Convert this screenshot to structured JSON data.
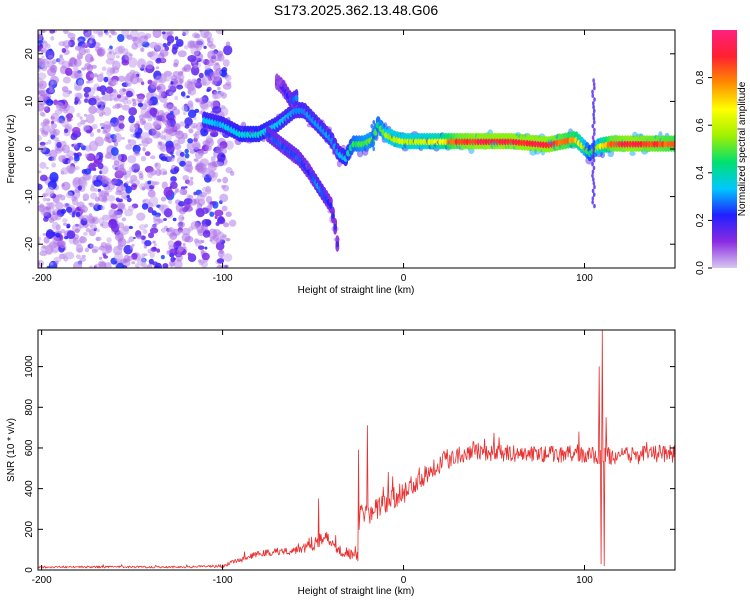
{
  "title": "S173.2025.362.13.48.G06",
  "chart_data": [
    {
      "type": "heatmap",
      "name": "spectrogram",
      "xlabel": "Height of straight line (km)",
      "ylabel": "Frequency (Hz)",
      "xlim": [
        -202,
        150
      ],
      "ylim": [
        -25,
        25
      ],
      "xticks": [
        -200,
        -100,
        0,
        100
      ],
      "xtick_labels": [
        "-200",
        "-100",
        "0",
        "100"
      ],
      "yticks": [
        -20,
        -10,
        0,
        10,
        20
      ],
      "ytick_labels": [
        "-20",
        "-10",
        "0",
        "10",
        "20"
      ],
      "colorbar": {
        "label": "Normalized spectral amplitude",
        "range": [
          0,
          1
        ],
        "ticks": [
          0.0,
          0.2,
          0.4,
          0.6,
          0.8
        ],
        "tick_labels": [
          "0.0",
          "0.2",
          "0.4",
          "0.6",
          "0.8"
        ],
        "stops": [
          "#d8c8f0",
          "#8a2be2",
          "#2020ff",
          "#00c8ff",
          "#00e070",
          "#a0f000",
          "#ffff00",
          "#ff8c00",
          "#ff2030",
          "#ff2080"
        ]
      },
      "features": {
        "noise_region_x": [
          -202,
          -93
        ],
        "noise_amplitude": 0.15,
        "main_trace": [
          {
            "x": -110,
            "f": 6,
            "a": 0.32
          },
          {
            "x": -100,
            "f": 5,
            "a": 0.32
          },
          {
            "x": -90,
            "f": 3,
            "a": 0.36
          },
          {
            "x": -80,
            "f": 3,
            "a": 0.36
          },
          {
            "x": -70,
            "f": 5,
            "a": 0.33
          },
          {
            "x": -60,
            "f": 8,
            "a": 0.3
          },
          {
            "x": -55,
            "f": 8,
            "a": 0.3
          },
          {
            "x": -50,
            "f": 6,
            "a": 0.3
          },
          {
            "x": -45,
            "f": 4,
            "a": 0.3
          },
          {
            "x": -40,
            "f": 2,
            "a": 0.3
          },
          {
            "x": -36,
            "f": -1,
            "a": 0.3
          },
          {
            "x": -32,
            "f": -2,
            "a": 0.35
          },
          {
            "x": -28,
            "f": 1,
            "a": 0.45
          },
          {
            "x": -22,
            "f": 1,
            "a": 0.5
          },
          {
            "x": -17,
            "f": 2,
            "a": 0.5
          },
          {
            "x": -14,
            "f": 5,
            "a": 0.45
          },
          {
            "x": -10,
            "f": 3,
            "a": 0.55
          },
          {
            "x": -5,
            "f": 2,
            "a": 0.6
          },
          {
            "x": 0,
            "f": 1.5,
            "a": 0.6
          },
          {
            "x": 10,
            "f": 1.5,
            "a": 0.6
          },
          {
            "x": 20,
            "f": 1.5,
            "a": 0.65
          },
          {
            "x": 30,
            "f": 1.5,
            "a": 0.85
          },
          {
            "x": 40,
            "f": 1.5,
            "a": 0.9
          },
          {
            "x": 60,
            "f": 1.5,
            "a": 0.9
          },
          {
            "x": 80,
            "f": 0.8,
            "a": 0.9
          },
          {
            "x": 95,
            "f": 2,
            "a": 0.75
          },
          {
            "x": 103,
            "f": -1,
            "a": 0.4
          },
          {
            "x": 108,
            "f": 0.5,
            "a": 0.6
          },
          {
            "x": 115,
            "f": 1,
            "a": 0.85
          },
          {
            "x": 125,
            "f": 1,
            "a": 0.9
          },
          {
            "x": 140,
            "f": 1,
            "a": 0.85
          },
          {
            "x": 150,
            "f": 1,
            "a": 0.8
          }
        ],
        "secondary_trace": [
          {
            "x": -75,
            "f": 3,
            "a": 0.25
          },
          {
            "x": -65,
            "f": 0,
            "a": 0.25
          },
          {
            "x": -58,
            "f": -2,
            "a": 0.25
          },
          {
            "x": -52,
            "f": -5,
            "a": 0.22
          },
          {
            "x": -47,
            "f": -8,
            "a": 0.3
          },
          {
            "x": -40,
            "f": -12,
            "a": 0.2
          },
          {
            "x": -37,
            "f": -18,
            "a": 0.18
          },
          {
            "x": -36,
            "f": -23,
            "a": 0.15
          }
        ],
        "upper_branch": [
          {
            "x": -70,
            "f": 14,
            "a": 0.15
          },
          {
            "x": -67,
            "f": 13,
            "a": 0.18
          },
          {
            "x": -62,
            "f": 10,
            "a": 0.25
          },
          {
            "x": -58,
            "f": 11,
            "a": 0.3
          }
        ],
        "vertical_streaks": [
          {
            "x": 105,
            "f_range": [
              -12,
              15
            ],
            "a": 0.15
          },
          {
            "x": -17,
            "f_range": [
              0,
              6
            ],
            "a": 0.25
          }
        ]
      }
    },
    {
      "type": "line",
      "name": "snr",
      "xlabel": "Height of straight line (km)",
      "ylabel": "SNR (10 * v/v)",
      "xlim": [
        -202,
        150
      ],
      "ylim": [
        0,
        1180
      ],
      "xticks": [
        -200,
        -100,
        0,
        100
      ],
      "xtick_labels": [
        "-200",
        "-100",
        "0",
        "100"
      ],
      "yticks": [
        0,
        200,
        400,
        600,
        800,
        1000
      ],
      "ytick_labels": [
        "0",
        "200",
        "400",
        "600",
        "800",
        "1000"
      ],
      "color": "#e83030",
      "baseline": [
        [
          -202,
          15
        ],
        [
          -120,
          15
        ],
        [
          -100,
          20
        ],
        [
          -90,
          50
        ],
        [
          -80,
          80
        ],
        [
          -70,
          90
        ],
        [
          -60,
          100
        ],
        [
          -50,
          130
        ],
        [
          -45,
          170
        ],
        [
          -40,
          130
        ],
        [
          -30,
          80
        ],
        [
          -25,
          70
        ],
        [
          -24,
          300
        ],
        [
          -20,
          270
        ],
        [
          -10,
          330
        ],
        [
          0,
          380
        ],
        [
          10,
          460
        ],
        [
          20,
          530
        ],
        [
          30,
          570
        ],
        [
          40,
          590
        ],
        [
          50,
          575
        ],
        [
          70,
          570
        ],
        [
          90,
          570
        ],
        [
          100,
          565
        ],
        [
          110,
          560
        ],
        [
          120,
          560
        ],
        [
          150,
          575
        ]
      ],
      "noise_amplitude": [
        [
          -202,
          10
        ],
        [
          -110,
          10
        ],
        [
          -90,
          25
        ],
        [
          -60,
          45
        ],
        [
          -45,
          90
        ],
        [
          -30,
          60
        ],
        [
          -25,
          100
        ],
        [
          0,
          110
        ],
        [
          20,
          110
        ],
        [
          40,
          90
        ],
        [
          60,
          80
        ],
        [
          150,
          90
        ]
      ],
      "spikes": [
        {
          "x": -47,
          "y": 350
        },
        {
          "x": -25,
          "y": 590
        },
        {
          "x": -20,
          "y": 710
        },
        {
          "x": 108,
          "y": 1000
        },
        {
          "x": 109,
          "y": 30
        },
        {
          "x": 110,
          "y": 1180
        },
        {
          "x": 111,
          "y": 20
        },
        {
          "x": 112,
          "y": 750
        }
      ]
    }
  ]
}
